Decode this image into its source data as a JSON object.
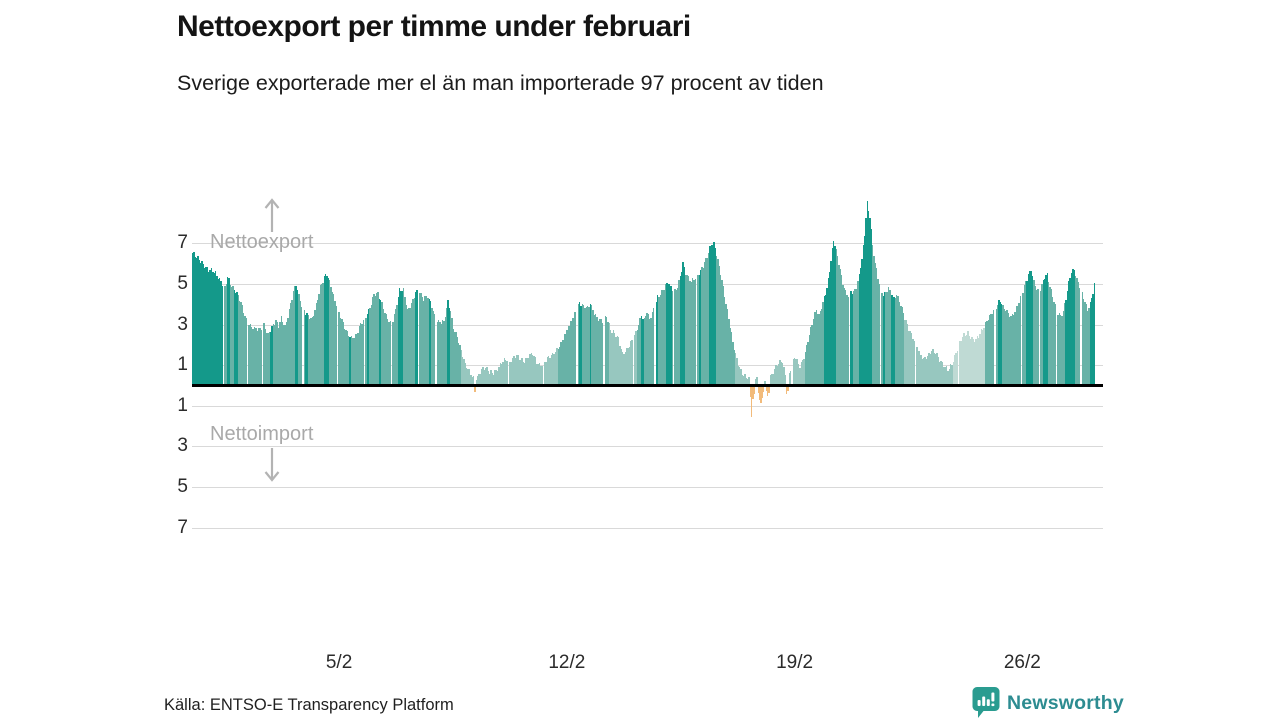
{
  "page": {
    "title": "Nettoexport per timme under februari",
    "subtitle": "Sverige exporterade mer el än man importerade 97 procent av tiden",
    "source": "Källa: ENTSO-E Transparency Platform",
    "brand": "Newsworthy"
  },
  "annotations": {
    "export_label": "Nettoexport",
    "import_label": "Nettoimport"
  },
  "icons": {
    "brand_icon": "newsworthy-speech-bubble-bar-chart"
  },
  "colors": {
    "bar_dark": "#14998a",
    "bar_mid": "#68b2a7",
    "bar_light": "#97c7bf",
    "bar_pale": "#bfdad4",
    "bar_import": "#f2bb7b",
    "axis_line": "#000000",
    "gridline": "#d9d9d9",
    "annotation": "#a9a9a9",
    "brand_teal": "#2d8c91",
    "brand_icon_teal": "#2a9c90"
  },
  "chart_data": {
    "type": "bar",
    "title": "Nettoexport per timme under februari",
    "subtitle": "Sverige exporterade mer el än man importerade 97 procent av tiden",
    "x_unit": "hour of February (672 hourly bars, Feb 1–28)",
    "hours": 672,
    "grid": true,
    "ylim": [
      -7.6,
      9.4
    ],
    "yticks": [
      7,
      5,
      3,
      1,
      -1,
      -3,
      -5,
      -7
    ],
    "ytick_labels": [
      "7",
      "5",
      "3",
      "1",
      "1",
      "3",
      "5",
      "7"
    ],
    "xticks": [
      {
        "label": "5/2",
        "hour": 108
      },
      {
        "label": "12/2",
        "hour": 276
      },
      {
        "label": "19/2",
        "hour": 444
      },
      {
        "label": "26/2",
        "hour": 612
      }
    ],
    "series_name": "Nettoexport per timme",
    "series_keypoints": [
      [
        0,
        6.45
      ],
      [
        3,
        6.2
      ],
      [
        6,
        6.0
      ],
      [
        9,
        5.85
      ],
      [
        12,
        5.7
      ],
      [
        15,
        5.6
      ],
      [
        18,
        5.3
      ],
      [
        21,
        5.0
      ],
      [
        23,
        4.85
      ],
      [
        24,
        4.8
      ],
      [
        26,
        5.35
      ],
      [
        28,
        5.0
      ],
      [
        31,
        4.65
      ],
      [
        34,
        4.3
      ],
      [
        37,
        3.8
      ],
      [
        40,
        3.2
      ],
      [
        43,
        2.95
      ],
      [
        46,
        2.75
      ],
      [
        50,
        2.6
      ],
      [
        53,
        2.9
      ],
      [
        56,
        2.5
      ],
      [
        59,
        2.85
      ],
      [
        62,
        3.1
      ],
      [
        64,
        2.8
      ],
      [
        66,
        3.2
      ],
      [
        69,
        2.8
      ],
      [
        72,
        3.7
      ],
      [
        75,
        4.6
      ],
      [
        77,
        4.9
      ],
      [
        79,
        4.3
      ],
      [
        81,
        3.8
      ],
      [
        84,
        3.5
      ],
      [
        87,
        3.35
      ],
      [
        89,
        3.3
      ],
      [
        92,
        3.9
      ],
      [
        95,
        4.7
      ],
      [
        98,
        5.2
      ],
      [
        100,
        5.45
      ],
      [
        103,
        4.9
      ],
      [
        105,
        4.4
      ],
      [
        108,
        3.7
      ],
      [
        111,
        3.1
      ],
      [
        114,
        2.6
      ],
      [
        118,
        2.35
      ],
      [
        122,
        2.45
      ],
      [
        125,
        2.9
      ],
      [
        129,
        3.3
      ],
      [
        132,
        3.8
      ],
      [
        135,
        4.5
      ],
      [
        138,
        4.45
      ],
      [
        141,
        3.9
      ],
      [
        144,
        3.3
      ],
      [
        148,
        2.95
      ],
      [
        151,
        3.7
      ],
      [
        154,
        4.6
      ],
      [
        157,
        4.55
      ],
      [
        160,
        3.6
      ],
      [
        163,
        4.0
      ],
      [
        166,
        4.6
      ],
      [
        169,
        4.5
      ],
      [
        172,
        4.1
      ],
      [
        175,
        4.3
      ],
      [
        178,
        3.9
      ],
      [
        181,
        3.2
      ],
      [
        184,
        3.05
      ],
      [
        187,
        3.0
      ],
      [
        190,
        4.0
      ],
      [
        192,
        3.6
      ],
      [
        194,
        2.8
      ],
      [
        197,
        2.4
      ],
      [
        200,
        1.6
      ],
      [
        203,
        0.9
      ],
      [
        206,
        0.6
      ],
      [
        209,
        0.35
      ],
      [
        212,
        0.4
      ],
      [
        215,
        0.7
      ],
      [
        218,
        0.75
      ],
      [
        221,
        0.55
      ],
      [
        224,
        0.6
      ],
      [
        227,
        0.8
      ],
      [
        230,
        1.05
      ],
      [
        233,
        1.15
      ],
      [
        236,
        1.05
      ],
      [
        239,
        1.35
      ],
      [
        241,
        1.5
      ],
      [
        244,
        1.25
      ],
      [
        247,
        1.05
      ],
      [
        250,
        1.3
      ],
      [
        253,
        1.55
      ],
      [
        256,
        1.15
      ],
      [
        259,
        0.95
      ],
      [
        262,
        1.05
      ],
      [
        265,
        1.25
      ],
      [
        268,
        1.45
      ],
      [
        271,
        1.75
      ],
      [
        274,
        2.05
      ],
      [
        277,
        2.4
      ],
      [
        280,
        2.8
      ],
      [
        283,
        3.3
      ],
      [
        286,
        3.8
      ],
      [
        288,
        4.1
      ],
      [
        291,
        3.85
      ],
      [
        294,
        3.7
      ],
      [
        296,
        3.9
      ],
      [
        299,
        3.5
      ],
      [
        302,
        3.25
      ],
      [
        305,
        3.15
      ],
      [
        308,
        3.3
      ],
      [
        311,
        2.6
      ],
      [
        314,
        2.5
      ],
      [
        317,
        2.3
      ],
      [
        320,
        1.55
      ],
      [
        323,
        1.65
      ],
      [
        326,
        1.95
      ],
      [
        329,
        2.35
      ],
      [
        332,
        3.0
      ],
      [
        334,
        3.45
      ],
      [
        336,
        3.2
      ],
      [
        338,
        3.55
      ],
      [
        340,
        3.1
      ],
      [
        343,
        3.6
      ],
      [
        346,
        4.3
      ],
      [
        349,
        4.6
      ],
      [
        352,
        4.85
      ],
      [
        354,
        5.0
      ],
      [
        356,
        4.7
      ],
      [
        358,
        4.45
      ],
      [
        361,
        4.8
      ],
      [
        363,
        5.4
      ],
      [
        365,
        6.0
      ],
      [
        367,
        5.5
      ],
      [
        369,
        5.2
      ],
      [
        371,
        5.0
      ],
      [
        374,
        5.2
      ],
      [
        377,
        5.5
      ],
      [
        380,
        5.9
      ],
      [
        383,
        6.3
      ],
      [
        386,
        6.8
      ],
      [
        388,
        6.85
      ],
      [
        390,
        6.4
      ],
      [
        392,
        5.8
      ],
      [
        394,
        5.2
      ],
      [
        396,
        4.4
      ],
      [
        398,
        3.6
      ],
      [
        400,
        2.8
      ],
      [
        402,
        2.0
      ],
      [
        404,
        1.4
      ],
      [
        406,
        1.0
      ],
      [
        408,
        0.7
      ],
      [
        410,
        0.5
      ],
      [
        412,
        0.4
      ],
      [
        414,
        0.25
      ],
      [
        420,
        0.3
      ],
      [
        426,
        0.3
      ],
      [
        431,
        0.4
      ],
      [
        434,
        0.8
      ],
      [
        437,
        1.1
      ],
      [
        439,
        1.15
      ],
      [
        441,
        0.5
      ],
      [
        444,
        0.5
      ],
      [
        446,
        0.9
      ],
      [
        448,
        1.3
      ],
      [
        450,
        1.1
      ],
      [
        452,
        0.85
      ],
      [
        454,
        1.2
      ],
      [
        456,
        1.6
      ],
      [
        458,
        2.2
      ],
      [
        460,
        2.7
      ],
      [
        462,
        3.2
      ],
      [
        464,
        3.6
      ],
      [
        466,
        3.35
      ],
      [
        468,
        3.8
      ],
      [
        470,
        4.3
      ],
      [
        472,
        4.8
      ],
      [
        474,
        5.6
      ],
      [
        476,
        6.6
      ],
      [
        477,
        7.0
      ],
      [
        478,
        6.8
      ],
      [
        480,
        6.2
      ],
      [
        482,
        5.6
      ],
      [
        484,
        5.0
      ],
      [
        486,
        4.6
      ],
      [
        488,
        4.4
      ],
      [
        490,
        4.6
      ],
      [
        492,
        4.45
      ],
      [
        494,
        4.7
      ],
      [
        496,
        5.3
      ],
      [
        498,
        6.2
      ],
      [
        500,
        7.4
      ],
      [
        501,
        8.3
      ],
      [
        502,
        9.0
      ],
      [
        503,
        8.6
      ],
      [
        504,
        8.3
      ],
      [
        505,
        7.6
      ],
      [
        506,
        6.8
      ],
      [
        508,
        5.9
      ],
      [
        510,
        5.2
      ],
      [
        512,
        4.6
      ],
      [
        514,
        4.4
      ],
      [
        516,
        4.6
      ],
      [
        518,
        4.8
      ],
      [
        520,
        4.5
      ],
      [
        522,
        4.2
      ],
      [
        524,
        4.35
      ],
      [
        526,
        4.0
      ],
      [
        528,
        3.7
      ],
      [
        530,
        3.3
      ],
      [
        533,
        2.8
      ],
      [
        536,
        2.3
      ],
      [
        539,
        1.8
      ],
      [
        541,
        1.45
      ],
      [
        544,
        1.2
      ],
      [
        547,
        1.45
      ],
      [
        550,
        1.7
      ],
      [
        553,
        1.5
      ],
      [
        556,
        1.1
      ],
      [
        559,
        0.9
      ],
      [
        562,
        0.8
      ],
      [
        565,
        1.0
      ],
      [
        568,
        1.5
      ],
      [
        571,
        2.0
      ],
      [
        574,
        2.4
      ],
      [
        577,
        2.55
      ],
      [
        580,
        2.3
      ],
      [
        583,
        2.15
      ],
      [
        586,
        2.4
      ],
      [
        589,
        2.8
      ],
      [
        592,
        3.3
      ],
      [
        595,
        3.6
      ],
      [
        598,
        3.8
      ],
      [
        601,
        4.05
      ],
      [
        603,
        3.75
      ],
      [
        606,
        3.6
      ],
      [
        609,
        3.4
      ],
      [
        612,
        3.6
      ],
      [
        615,
        4.0
      ],
      [
        618,
        4.5
      ],
      [
        620,
        5.0
      ],
      [
        622,
        5.4
      ],
      [
        624,
        5.7
      ],
      [
        626,
        5.1
      ],
      [
        628,
        4.7
      ],
      [
        630,
        4.45
      ],
      [
        632,
        4.8
      ],
      [
        634,
        5.2
      ],
      [
        636,
        5.4
      ],
      [
        638,
        4.85
      ],
      [
        640,
        4.4
      ],
      [
        642,
        3.9
      ],
      [
        644,
        3.5
      ],
      [
        646,
        3.3
      ],
      [
        648,
        3.5
      ],
      [
        650,
        4.2
      ],
      [
        652,
        5.0
      ],
      [
        654,
        5.6
      ],
      [
        656,
        5.7
      ],
      [
        658,
        5.2
      ],
      [
        660,
        4.8
      ],
      [
        662,
        4.4
      ],
      [
        664,
        4.0
      ],
      [
        666,
        3.6
      ],
      [
        668,
        4.0
      ],
      [
        670,
        4.6
      ],
      [
        671,
        5.0
      ]
    ],
    "import_hours": {
      "210": -0.25,
      "415": -0.5,
      "416": -1.5,
      "417": -0.6,
      "418": -0.35,
      "421": -0.3,
      "422": -0.65,
      "423": -0.8,
      "424": -0.55,
      "425": -0.25,
      "427": -0.2,
      "428": -0.45,
      "429": -0.3,
      "442": -0.35,
      "443": -0.2
    },
    "shade_segments": [
      [
        0,
        23,
        "dark"
      ],
      [
        24,
        199,
        "mid"
      ],
      [
        200,
        271,
        "light"
      ],
      [
        272,
        309,
        "mid"
      ],
      [
        310,
        330,
        "light"
      ],
      [
        331,
        403,
        "mid"
      ],
      [
        404,
        455,
        "light"
      ],
      [
        456,
        529,
        "mid"
      ],
      [
        530,
        565,
        "light"
      ],
      [
        566,
        589,
        "pale"
      ],
      [
        590,
        671,
        "mid"
      ]
    ],
    "dark_hours": [
      26,
      27,
      31,
      32,
      33,
      58,
      59,
      77,
      78,
      84,
      85,
      98,
      99,
      100,
      101,
      117,
      130,
      131,
      139,
      140,
      153,
      154,
      155,
      156,
      166,
      167,
      168,
      176,
      177,
      190,
      191,
      288,
      289,
      296,
      334,
      335,
      345,
      346,
      353,
      354,
      355,
      356,
      363,
      364,
      365,
      366,
      377,
      378,
      385,
      386,
      387,
      388,
      389,
      470,
      471,
      472,
      473,
      474,
      475,
      476,
      477,
      478,
      490,
      491,
      496,
      497,
      498,
      499,
      500,
      501,
      502,
      503,
      504,
      505,
      514,
      515,
      520,
      521,
      522,
      600,
      601,
      602,
      621,
      622,
      623,
      624,
      625,
      633,
      634,
      635,
      636,
      650,
      651,
      652,
      653,
      654,
      655,
      656,
      668,
      669,
      670,
      671
    ],
    "gap_hours": [
      23,
      41,
      52,
      82,
      108,
      128,
      148,
      168,
      181,
      235,
      261,
      286,
      306,
      328,
      344,
      358,
      375,
      446,
      489,
      512,
      538,
      570,
      597,
      617,
      630,
      643,
      661
    ]
  }
}
